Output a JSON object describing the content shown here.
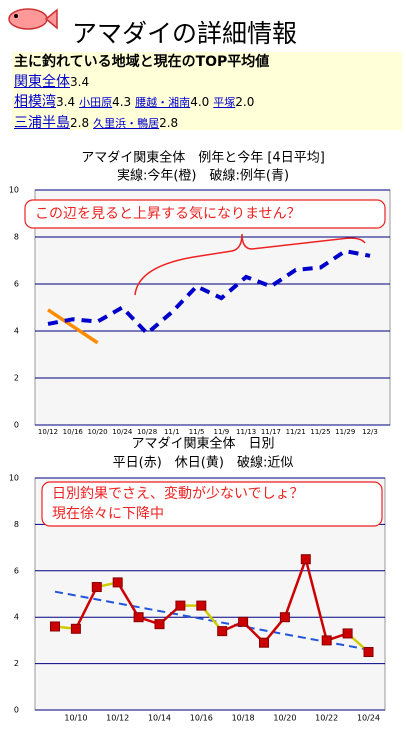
{
  "header": {
    "title": "アマダイの詳細情報"
  },
  "summary": {
    "heading": "主に釣れている地域と現在のTOP平均値",
    "rows": [
      {
        "area": "関東全体",
        "value": "3.4",
        "subs": []
      },
      {
        "area": "相模湾",
        "value": "3.4",
        "subs": [
          {
            "name": "小田原",
            "value": "4.3"
          },
          {
            "name": "腰越・湘南",
            "value": "4.0"
          },
          {
            "name": "平塚",
            "value": "2.0"
          }
        ]
      },
      {
        "area": "三浦半島",
        "value": "2.8",
        "subs": [
          {
            "name": "久里浜・鴨居",
            "value": "2.8"
          }
        ]
      }
    ]
  },
  "chart_data": [
    {
      "type": "line",
      "title": "アマダイ関東全体　例年と今年 [4日平均]",
      "subtitle": "実線:今年(橙)　破線:例年(青)",
      "annotation": [
        "この辺を見ると上昇する気になりません？"
      ],
      "categories": [
        "10/12",
        "10/16",
        "10/20",
        "10/24",
        "10/28",
        "11/1",
        "11/5",
        "11/9",
        "11/13",
        "11/17",
        "11/21",
        "11/25",
        "11/29",
        "12/3"
      ],
      "series": [
        {
          "name": "今年",
          "color": "#ff8c00",
          "dashed": false,
          "values": [
            4.9,
            4.2,
            3.5,
            null,
            null,
            null,
            null,
            null,
            null,
            null,
            null,
            null,
            null,
            null
          ]
        },
        {
          "name": "例年",
          "color": "#0000cc",
          "dashed": true,
          "values": [
            4.3,
            4.5,
            4.4,
            5.0,
            3.9,
            4.8,
            5.9,
            5.4,
            6.3,
            5.9,
            6.6,
            6.7,
            7.4,
            7.2
          ]
        }
      ],
      "ylim": [
        0,
        10
      ],
      "yticks": [
        0,
        2,
        4,
        6,
        8,
        10
      ],
      "grid": true
    },
    {
      "type": "line",
      "title": "アマダイ関東全体　日別",
      "subtitle": "平日(赤)　休日(黄)　破線:近似",
      "annotation": [
        "日別釣果でさえ、変動が少ないでしょ？",
        "現在徐々に下降中"
      ],
      "categories": [
        null,
        "10/10",
        null,
        "10/12",
        null,
        "10/14",
        null,
        "10/16",
        null,
        "10/18",
        null,
        "10/20",
        null,
        "10/22",
        null,
        "10/24"
      ],
      "series": [
        {
          "name": "日別",
          "color": "#cc0000",
          "values": [
            3.6,
            3.5,
            5.3,
            5.5,
            4.0,
            3.7,
            4.5,
            4.5,
            3.4,
            3.8,
            2.9,
            4.0,
            6.5,
            3.0,
            3.3,
            2.5
          ],
          "segment_colors": [
            "#cccc00",
            "#cc0000",
            "#cccc00",
            "#cc0000",
            "#cc0000",
            "#cc0000",
            "#cccc00",
            "#cccc00",
            "#cc0000",
            "#cc0000",
            "#cc0000",
            "#cc0000",
            "#cc0000",
            "#cc0000",
            "#cccc00"
          ]
        }
      ],
      "trend": [
        5.1,
        2.6
      ],
      "trend_color": "#2255dd",
      "ylim": [
        0,
        10
      ],
      "yticks": [
        0,
        2,
        4,
        6,
        8,
        10
      ],
      "grid": true
    }
  ]
}
